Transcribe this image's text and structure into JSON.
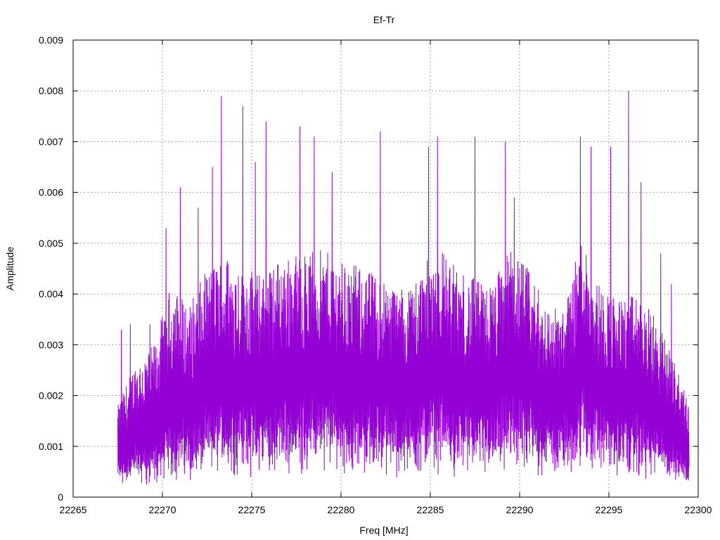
{
  "chart_data": {
    "type": "line",
    "title": "Ef-Tr",
    "xlabel": "Freq [MHz]",
    "ylabel": "Amplitude",
    "xlim": [
      22265,
      22300
    ],
    "ylim": [
      0,
      0.009
    ],
    "xticks": [
      "22265",
      "22270",
      "22275",
      "22280",
      "22285",
      "22290",
      "22295",
      "22300"
    ],
    "yticks": [
      "0",
      "0.001",
      "0.002",
      "0.003",
      "0.004",
      "0.005",
      "0.006",
      "0.007",
      "0.008",
      "0.009"
    ],
    "grid": true,
    "series": [
      {
        "color": "#9400d3",
        "x_start": 22267.5,
        "x_end": 22299.5,
        "peaks": [
          {
            "x": 22267.7,
            "y": 0.0033
          },
          {
            "x": 22268.2,
            "y": 0.0034
          },
          {
            "x": 22269.3,
            "y": 0.0034
          },
          {
            "x": 22270.2,
            "y": 0.0053
          },
          {
            "x": 22271.0,
            "y": 0.0061
          },
          {
            "x": 22272.0,
            "y": 0.0057
          },
          {
            "x": 22272.8,
            "y": 0.0065
          },
          {
            "x": 22273.3,
            "y": 0.0079
          },
          {
            "x": 22274.5,
            "y": 0.0077
          },
          {
            "x": 22275.2,
            "y": 0.0066
          },
          {
            "x": 22275.8,
            "y": 0.0074
          },
          {
            "x": 22277.7,
            "y": 0.0073
          },
          {
            "x": 22278.5,
            "y": 0.0071
          },
          {
            "x": 22279.5,
            "y": 0.0064
          },
          {
            "x": 22282.2,
            "y": 0.0072
          },
          {
            "x": 22284.9,
            "y": 0.0069
          },
          {
            "x": 22285.4,
            "y": 0.0071
          },
          {
            "x": 22287.5,
            "y": 0.0071
          },
          {
            "x": 22289.2,
            "y": 0.007
          },
          {
            "x": 22289.7,
            "y": 0.0059
          },
          {
            "x": 22293.4,
            "y": 0.0071
          },
          {
            "x": 22294.0,
            "y": 0.0069
          },
          {
            "x": 22295.1,
            "y": 0.0069
          },
          {
            "x": 22296.1,
            "y": 0.008
          },
          {
            "x": 22296.8,
            "y": 0.0062
          },
          {
            "x": 22297.9,
            "y": 0.0048
          },
          {
            "x": 22298.5,
            "y": 0.0042
          },
          {
            "x": 22299.2,
            "y": 0.0021
          }
        ],
        "envelope": [
          {
            "x": 22267.5,
            "lo": 0.0005,
            "hi": 0.0018
          },
          {
            "x": 22268.5,
            "lo": 0.0006,
            "hi": 0.0027
          },
          {
            "x": 22269.5,
            "lo": 0.0005,
            "hi": 0.003
          },
          {
            "x": 22270.5,
            "lo": 0.0009,
            "hi": 0.0042
          },
          {
            "x": 22271.5,
            "lo": 0.0008,
            "hi": 0.0038
          },
          {
            "x": 22272.5,
            "lo": 0.001,
            "hi": 0.0045
          },
          {
            "x": 22273.5,
            "lo": 0.0012,
            "hi": 0.0048
          },
          {
            "x": 22274.5,
            "lo": 0.0012,
            "hi": 0.0046
          },
          {
            "x": 22275.5,
            "lo": 0.0011,
            "hi": 0.0044
          },
          {
            "x": 22276.5,
            "lo": 0.0012,
            "hi": 0.0047
          },
          {
            "x": 22277.5,
            "lo": 0.0012,
            "hi": 0.0048
          },
          {
            "x": 22278.5,
            "lo": 0.0013,
            "hi": 0.0049
          },
          {
            "x": 22279.5,
            "lo": 0.0013,
            "hi": 0.0048
          },
          {
            "x": 22280.5,
            "lo": 0.0012,
            "hi": 0.0046
          },
          {
            "x": 22281.5,
            "lo": 0.0012,
            "hi": 0.0045
          },
          {
            "x": 22282.5,
            "lo": 0.0012,
            "hi": 0.0043
          },
          {
            "x": 22283.5,
            "lo": 0.0011,
            "hi": 0.0041
          },
          {
            "x": 22284.5,
            "lo": 0.0012,
            "hi": 0.0045
          },
          {
            "x": 22285.5,
            "lo": 0.0013,
            "hi": 0.005
          },
          {
            "x": 22286.5,
            "lo": 0.0011,
            "hi": 0.0045
          },
          {
            "x": 22287.5,
            "lo": 0.0011,
            "hi": 0.0043
          },
          {
            "x": 22288.5,
            "lo": 0.0011,
            "hi": 0.0042
          },
          {
            "x": 22289.5,
            "lo": 0.0013,
            "hi": 0.005
          },
          {
            "x": 22290.5,
            "lo": 0.0012,
            "hi": 0.0045
          },
          {
            "x": 22291.5,
            "lo": 0.0011,
            "hi": 0.0038
          },
          {
            "x": 22292.5,
            "lo": 0.0011,
            "hi": 0.0037
          },
          {
            "x": 22293.5,
            "lo": 0.0014,
            "hi": 0.0052
          },
          {
            "x": 22294.5,
            "lo": 0.0012,
            "hi": 0.0042
          },
          {
            "x": 22295.5,
            "lo": 0.0011,
            "hi": 0.0039
          },
          {
            "x": 22296.5,
            "lo": 0.001,
            "hi": 0.004
          },
          {
            "x": 22297.5,
            "lo": 0.0009,
            "hi": 0.0036
          },
          {
            "x": 22298.5,
            "lo": 0.0007,
            "hi": 0.0029
          },
          {
            "x": 22299.5,
            "lo": 0.0006,
            "hi": 0.0018
          }
        ]
      }
    ]
  }
}
